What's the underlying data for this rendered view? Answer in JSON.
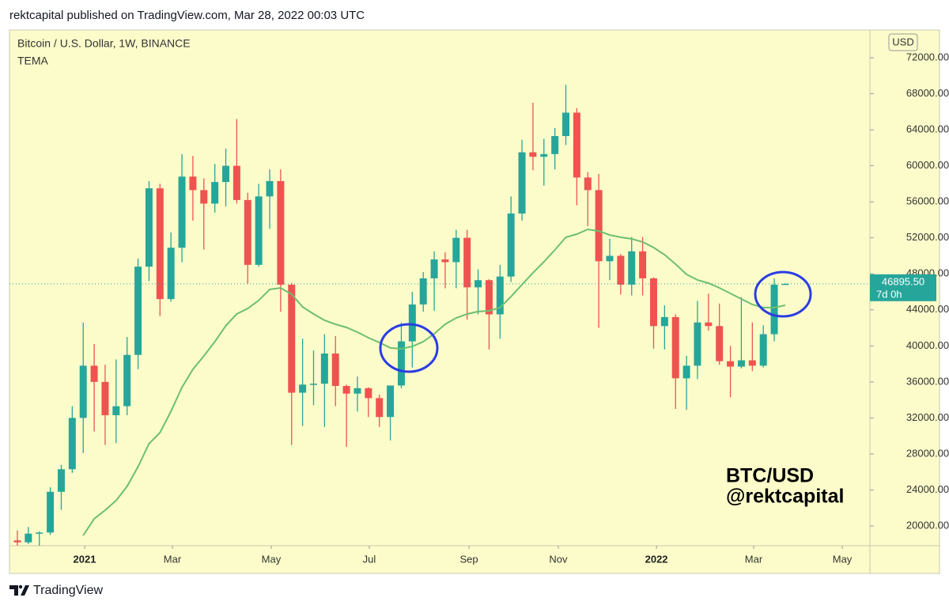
{
  "header": "rektcapital published on TradingView.com, Mar 28, 2022 00:03 UTC",
  "footer": "TradingView",
  "chart_data": {
    "type": "candlestick",
    "title": "Bitcoin / U.S. Dollar, 1W, BINANCE",
    "currency": "USD",
    "annotations": [
      "BTC/USD",
      "@rektcapital"
    ],
    "up_color": "#26a69a",
    "down_color": "#ef5350",
    "background": "#fcfcca",
    "open": [
      18400,
      18185,
      19150,
      19270,
      23800,
      26300,
      32000,
      37800,
      36000,
      32300,
      33300,
      39000,
      48800,
      57500,
      45200,
      50900,
      58800,
      57300,
      55800,
      58200,
      60000,
      56200,
      49000,
      56600,
      58300,
      46800,
      34800,
      35700,
      35800,
      39150,
      35550,
      34700,
      35300,
      34200,
      32100,
      35600,
      40500,
      44600,
      47500,
      49600,
      49300,
      52000,
      46500,
      47300,
      43500,
      47700,
      54700,
      61500,
      61000,
      61300,
      63300,
      65900,
      58700,
      57300,
      49400,
      50000,
      46800,
      50500,
      47500,
      42200,
      43200,
      36400,
      37800,
      42600,
      42200,
      38300,
      37700,
      38400,
      37800,
      41300,
      46800
    ],
    "high": [
      19500,
      19900,
      19400,
      24300,
      26800,
      33300,
      42600,
      40200,
      37900,
      38500,
      41000,
      49700,
      58300,
      58000,
      52600,
      61300,
      61100,
      58600,
      60200,
      61900,
      65200,
      57000,
      58000,
      59600,
      59600,
      47000,
      40800,
      39500,
      41300,
      41100,
      35700,
      36600,
      35400,
      34600,
      35400,
      42600,
      46000,
      48200,
      50500,
      50400,
      52900,
      52900,
      48500,
      47400,
      49000,
      56600,
      62900,
      67000,
      63000,
      64200,
      69000,
      66400,
      59300,
      59100,
      51900,
      50200,
      52100,
      52100,
      47600,
      44500,
      43500,
      38900,
      45000,
      45800,
      44700,
      40000,
      45400,
      42600,
      42300,
      47500,
      46950
    ],
    "low": [
      16200,
      18000,
      17600,
      19000,
      21800,
      25900,
      28100,
      30500,
      29000,
      29200,
      32300,
      37400,
      47200,
      43300,
      44900,
      49300,
      53900,
      50700,
      54800,
      55500,
      55800,
      46900,
      48800,
      53000,
      43800,
      29000,
      31100,
      33400,
      31000,
      33300,
      28800,
      32700,
      32100,
      31000,
      29500,
      35300,
      37600,
      43800,
      43900,
      46400,
      46400,
      42900,
      43500,
      39600,
      40800,
      47100,
      53900,
      59500,
      57800,
      59600,
      62300,
      55600,
      53300,
      42000,
      47300,
      45700,
      45600,
      45600,
      39700,
      39600,
      33000,
      32900,
      36300,
      41700,
      37900,
      34300,
      37500,
      37200,
      37600,
      40500,
      46800
    ],
    "close": [
      18185,
      19150,
      19270,
      23800,
      26300,
      32000,
      37800,
      36000,
      32300,
      33300,
      39000,
      48800,
      57500,
      45200,
      50900,
      58800,
      57300,
      55800,
      58200,
      60000,
      56200,
      49000,
      56600,
      58300,
      46800,
      34800,
      35700,
      35800,
      39150,
      35550,
      34700,
      35300,
      34200,
      32100,
      35600,
      40500,
      44600,
      47500,
      49600,
      49300,
      52000,
      46500,
      47300,
      43500,
      47700,
      54700,
      61500,
      61000,
      61300,
      63300,
      65900,
      58700,
      57300,
      49400,
      50000,
      46800,
      50500,
      47500,
      42200,
      43200,
      36400,
      37800,
      42600,
      42200,
      38300,
      37700,
      38400,
      37800,
      41300,
      46800,
      46895.5
    ],
    "series": [
      {
        "name": "TEMA",
        "color": "#6dbf6f",
        "values": [
          null,
          null,
          null,
          null,
          null,
          null,
          18950,
          20800,
          21760,
          22820,
          24400,
          26590,
          29140,
          30370,
          32740,
          35370,
          37390,
          38890,
          40470,
          42230,
          43540,
          44160,
          45040,
          46270,
          46440,
          45740,
          44330,
          43540,
          42840,
          42400,
          42050,
          41520,
          40910,
          40380,
          39770,
          39680,
          39940,
          40470,
          41350,
          42400,
          43100,
          43540,
          43810,
          43890,
          44250,
          45480,
          46800,
          48120,
          49340,
          50660,
          52060,
          52410,
          52940,
          52760,
          52320,
          52060,
          51890,
          51540,
          50920,
          50130,
          49080,
          47940,
          47320,
          46970,
          46440,
          45830,
          45210,
          44600,
          44250,
          44250,
          44510
        ]
      }
    ],
    "last_price": {
      "value": 46895.5,
      "label": "46895.50"
    },
    "countdown": "7d 0h",
    "ylim": [
      17807,
      75074
    ],
    "yticks": [
      {
        "value": 20000,
        "label": "20000.00"
      },
      {
        "value": 24000,
        "label": "24000.00"
      },
      {
        "value": 28000,
        "label": "28000.00"
      },
      {
        "value": 32000,
        "label": "32000.00"
      },
      {
        "value": 36000,
        "label": "36000.00"
      },
      {
        "value": 40000,
        "label": "40000.00"
      },
      {
        "value": 44000,
        "label": "44000.00"
      },
      {
        "value": 48000,
        "label": "48000.00"
      },
      {
        "value": 52000,
        "label": "52000.00"
      },
      {
        "value": 56000,
        "label": "56000.00"
      },
      {
        "value": 60000,
        "label": "60000.00"
      },
      {
        "value": 64000,
        "label": "64000.00"
      },
      {
        "value": 68000,
        "label": "68000.00"
      },
      {
        "value": 72000,
        "label": "72000.00"
      }
    ],
    "xlim": [
      -0.72,
      77.72
    ],
    "xticks": [
      {
        "value": 6.13,
        "label": "2021"
      },
      {
        "value": 14.13,
        "label": "Mar"
      },
      {
        "value": 23.14,
        "label": "May"
      },
      {
        "value": 32.08,
        "label": "Jul"
      },
      {
        "value": 41.17,
        "label": "Sep"
      },
      {
        "value": 49.31,
        "label": "Nov"
      },
      {
        "value": 58.26,
        "label": "2022"
      },
      {
        "value": 67.12,
        "label": "Mar"
      },
      {
        "value": 75.2,
        "label": "May"
      }
    ]
  }
}
